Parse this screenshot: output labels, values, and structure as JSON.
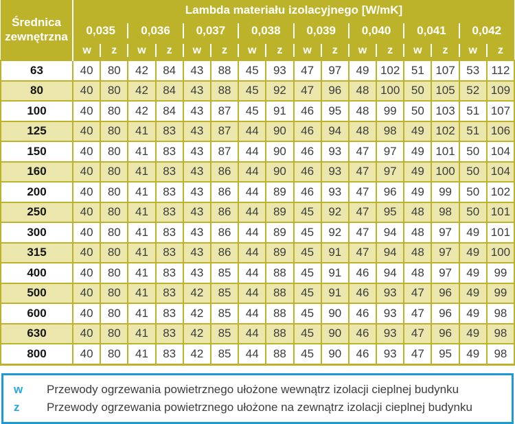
{
  "colors": {
    "olive": "#bcb32b",
    "pale_row": "#ebe6ab",
    "text": "#3c3c3c",
    "legend_border": "#1c9ad6",
    "legend_blue": "#29a7e1"
  },
  "table": {
    "corner_header": {
      "line1": "Średnica",
      "line2": "zewnętrzna"
    },
    "main_header": "Lambda materiału izolacyjnego [W/mK]",
    "lambda_values": [
      "0,035",
      "0,036",
      "0,037",
      "0,038",
      "0,039",
      "0,040",
      "0,041",
      "0,042"
    ],
    "sub_headers": [
      "w",
      "z"
    ],
    "rows": [
      {
        "diameter": "63",
        "values": [
          40,
          80,
          42,
          84,
          43,
          88,
          45,
          93,
          47,
          97,
          49,
          102,
          51,
          107,
          53,
          112
        ]
      },
      {
        "diameter": "80",
        "values": [
          40,
          80,
          42,
          84,
          43,
          88,
          45,
          92,
          47,
          96,
          48,
          100,
          50,
          105,
          52,
          109
        ]
      },
      {
        "diameter": "100",
        "values": [
          40,
          80,
          42,
          84,
          43,
          87,
          45,
          91,
          46,
          95,
          48,
          99,
          50,
          103,
          51,
          107
        ]
      },
      {
        "diameter": "125",
        "values": [
          40,
          80,
          41,
          83,
          43,
          87,
          44,
          90,
          46,
          94,
          48,
          98,
          49,
          102,
          51,
          106
        ]
      },
      {
        "diameter": "150",
        "values": [
          40,
          80,
          41,
          83,
          43,
          87,
          44,
          90,
          46,
          93,
          47,
          97,
          49,
          101,
          50,
          104
        ]
      },
      {
        "diameter": "160",
        "values": [
          40,
          80,
          41,
          83,
          43,
          86,
          44,
          90,
          46,
          93,
          47,
          97,
          49,
          100,
          50,
          104
        ]
      },
      {
        "diameter": "200",
        "values": [
          40,
          80,
          41,
          83,
          43,
          86,
          44,
          89,
          46,
          93,
          47,
          96,
          49,
          99,
          50,
          102
        ]
      },
      {
        "diameter": "250",
        "values": [
          40,
          80,
          41,
          83,
          43,
          86,
          44,
          89,
          45,
          92,
          47,
          95,
          48,
          98,
          50,
          101
        ]
      },
      {
        "diameter": "300",
        "values": [
          40,
          80,
          41,
          83,
          43,
          86,
          44,
          89,
          45,
          92,
          47,
          94,
          48,
          97,
          49,
          101
        ]
      },
      {
        "diameter": "315",
        "values": [
          40,
          80,
          41,
          83,
          43,
          86,
          44,
          89,
          45,
          91,
          47,
          94,
          48,
          97,
          49,
          100
        ]
      },
      {
        "diameter": "400",
        "values": [
          40,
          80,
          41,
          83,
          43,
          85,
          44,
          88,
          45,
          91,
          46,
          94,
          48,
          97,
          49,
          99
        ]
      },
      {
        "diameter": "500",
        "values": [
          40,
          80,
          41,
          83,
          42,
          85,
          44,
          88,
          45,
          91,
          46,
          93,
          47,
          96,
          49,
          99
        ]
      },
      {
        "diameter": "600",
        "values": [
          40,
          80,
          41,
          83,
          42,
          85,
          44,
          88,
          45,
          90,
          46,
          93,
          47,
          96,
          49,
          98
        ]
      },
      {
        "diameter": "630",
        "values": [
          40,
          80,
          41,
          83,
          42,
          85,
          44,
          88,
          45,
          90,
          46,
          93,
          47,
          96,
          49,
          98
        ]
      },
      {
        "diameter": "800",
        "values": [
          40,
          80,
          41,
          83,
          42,
          85,
          44,
          88,
          45,
          90,
          46,
          93,
          47,
          95,
          49,
          98
        ]
      }
    ]
  },
  "legend": {
    "items": [
      {
        "symbol": "w",
        "text": "Przewody ogrzewania powietrznego ułożone wewnątrz izolacji cieplnej budynku"
      },
      {
        "symbol": "z",
        "text": "Przewody ogrzewania powietrznego ułożone na zewnątrz izolacji cieplnej budynku"
      }
    ]
  },
  "chart_data": {
    "type": "table",
    "title": "Lambda materiału izolacyjnego [W/mK]",
    "row_header": "Średnica zewnętrzna",
    "columns": [
      "0,035 w",
      "0,035 z",
      "0,036 w",
      "0,036 z",
      "0,037 w",
      "0,037 z",
      "0,038 w",
      "0,038 z",
      "0,039 w",
      "0,039 z",
      "0,040 w",
      "0,040 z",
      "0,041 w",
      "0,041 z",
      "0,042 w",
      "0,042 z"
    ],
    "row_labels": [
      "63",
      "80",
      "100",
      "125",
      "150",
      "160",
      "200",
      "250",
      "300",
      "315",
      "400",
      "500",
      "600",
      "630",
      "800"
    ],
    "values": [
      [
        40,
        80,
        42,
        84,
        43,
        88,
        45,
        93,
        47,
        97,
        49,
        102,
        51,
        107,
        53,
        112
      ],
      [
        40,
        80,
        42,
        84,
        43,
        88,
        45,
        92,
        47,
        96,
        48,
        100,
        50,
        105,
        52,
        109
      ],
      [
        40,
        80,
        42,
        84,
        43,
        87,
        45,
        91,
        46,
        95,
        48,
        99,
        50,
        103,
        51,
        107
      ],
      [
        40,
        80,
        41,
        83,
        43,
        87,
        44,
        90,
        46,
        94,
        48,
        98,
        49,
        102,
        51,
        106
      ],
      [
        40,
        80,
        41,
        83,
        43,
        87,
        44,
        90,
        46,
        93,
        47,
        97,
        49,
        101,
        50,
        104
      ],
      [
        40,
        80,
        41,
        83,
        43,
        86,
        44,
        90,
        46,
        93,
        47,
        97,
        49,
        100,
        50,
        104
      ],
      [
        40,
        80,
        41,
        83,
        43,
        86,
        44,
        89,
        46,
        93,
        47,
        96,
        49,
        99,
        50,
        102
      ],
      [
        40,
        80,
        41,
        83,
        43,
        86,
        44,
        89,
        45,
        92,
        47,
        95,
        48,
        98,
        50,
        101
      ],
      [
        40,
        80,
        41,
        83,
        43,
        86,
        44,
        89,
        45,
        92,
        47,
        94,
        48,
        97,
        49,
        101
      ],
      [
        40,
        80,
        41,
        83,
        43,
        86,
        44,
        89,
        45,
        91,
        47,
        94,
        48,
        97,
        49,
        100
      ],
      [
        40,
        80,
        41,
        83,
        43,
        85,
        44,
        88,
        45,
        91,
        46,
        94,
        48,
        97,
        49,
        99
      ],
      [
        40,
        80,
        41,
        83,
        42,
        85,
        44,
        88,
        45,
        91,
        46,
        93,
        47,
        96,
        49,
        99
      ],
      [
        40,
        80,
        41,
        83,
        42,
        85,
        44,
        88,
        45,
        90,
        46,
        93,
        47,
        96,
        49,
        98
      ],
      [
        40,
        80,
        41,
        83,
        42,
        85,
        44,
        88,
        45,
        90,
        46,
        93,
        47,
        96,
        49,
        98
      ],
      [
        40,
        80,
        41,
        83,
        42,
        85,
        44,
        88,
        45,
        90,
        46,
        93,
        47,
        95,
        49,
        98
      ]
    ]
  }
}
